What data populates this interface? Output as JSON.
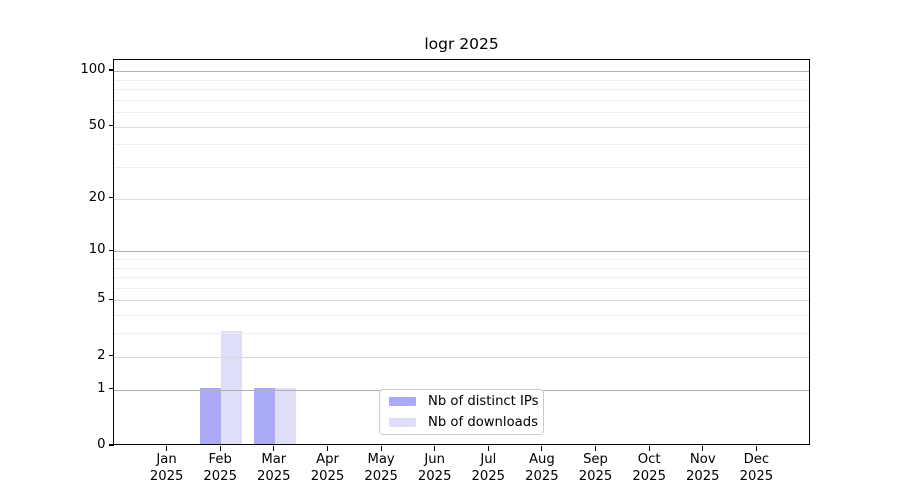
{
  "chart_data": {
    "type": "bar",
    "title": "logr 2025",
    "year_label": "2025",
    "months": [
      "Jan",
      "Feb",
      "Mar",
      "Apr",
      "May",
      "Jun",
      "Jul",
      "Aug",
      "Sep",
      "Oct",
      "Nov",
      "Dec"
    ],
    "series": [
      {
        "name": "Nb of distinct IPs",
        "color": "#a9a9f6",
        "values": [
          0,
          1,
          1,
          0,
          0,
          0,
          0,
          0,
          0,
          0,
          0,
          0
        ]
      },
      {
        "name": "Nb of downloads",
        "color": "#dedef8",
        "values": [
          0,
          3,
          1,
          0,
          0,
          0,
          0,
          0,
          0,
          0,
          0,
          0
        ]
      }
    ],
    "y_scale": "log1p",
    "y_axis": {
      "ticks": [
        0,
        1,
        2,
        5,
        10,
        20,
        50,
        100
      ],
      "major_gridline_values": [
        1,
        10,
        100
      ],
      "mid_gridline_values": [
        2,
        5,
        20,
        50
      ],
      "minor_gridline_values": [
        3,
        4,
        6,
        7,
        8,
        9,
        30,
        40,
        60,
        70,
        80,
        90
      ],
      "range": [
        0,
        116
      ]
    },
    "grid": {
      "major_color": "#b0b0b0",
      "mid_color": "#d9d9d9",
      "minor_color": "#eeeeee"
    },
    "legend": {
      "position": "lower center"
    },
    "colors": {
      "axis": "#000000",
      "legend_border": "#cccccc",
      "background": "#ffffff"
    }
  }
}
